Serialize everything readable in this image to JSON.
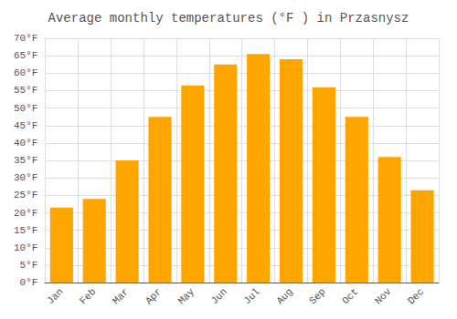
{
  "chart_data": {
    "type": "bar",
    "title": "Average monthly temperatures (°F ) in Przasnysz",
    "categories": [
      "Jan",
      "Feb",
      "Mar",
      "Apr",
      "May",
      "Jun",
      "Jul",
      "Aug",
      "Sep",
      "Oct",
      "Nov",
      "Dec"
    ],
    "values": [
      21.5,
      24.0,
      35.0,
      47.5,
      56.5,
      62.5,
      65.5,
      64.0,
      56.0,
      47.5,
      36.0,
      26.5
    ],
    "color": "#FFA500",
    "ylim": [
      0,
      70
    ],
    "yticks": [
      {
        "value": 0,
        "label": "0°F"
      },
      {
        "value": 5,
        "label": "5°F"
      },
      {
        "value": 10,
        "label": "10°F"
      },
      {
        "value": 15,
        "label": "15°F"
      },
      {
        "value": 20,
        "label": "20°F"
      },
      {
        "value": 25,
        "label": "25°F"
      },
      {
        "value": 30,
        "label": "30°F"
      },
      {
        "value": 35,
        "label": "35°F"
      },
      {
        "value": 40,
        "label": "40°F"
      },
      {
        "value": 45,
        "label": "45°F"
      },
      {
        "value": 50,
        "label": "50°F"
      },
      {
        "value": 55,
        "label": "55°F"
      },
      {
        "value": 60,
        "label": "60°F"
      },
      {
        "value": 65,
        "label": "65°F"
      },
      {
        "value": 70,
        "label": "70°F"
      }
    ],
    "grid": true
  }
}
